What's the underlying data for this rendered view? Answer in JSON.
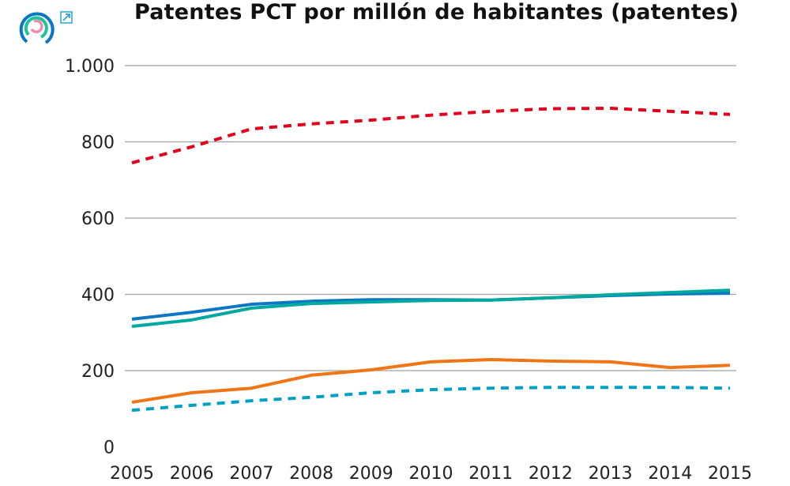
{
  "header": {
    "logo": "logo-rings",
    "external_link_icon": "external-link-icon"
  },
  "chart_data": {
    "type": "line",
    "title": "Patentes PCT por millón de habitantes (patentes)",
    "xlabel": "",
    "ylabel": "",
    "x": [
      2005,
      2006,
      2007,
      2008,
      2009,
      2010,
      2011,
      2012,
      2013,
      2014,
      2015
    ],
    "xtick_labels": [
      "2005",
      "2006",
      "2007",
      "2008",
      "2009",
      "2010",
      "2011",
      "2012",
      "2013",
      "2014",
      "2015"
    ],
    "ylim": [
      0,
      1000
    ],
    "yticks": [
      0,
      200,
      400,
      600,
      800,
      1000
    ],
    "ytick_labels": [
      "0",
      "200",
      "400",
      "600",
      "800",
      "1.000"
    ],
    "grid": "horizontal",
    "legend": "none",
    "series": [
      {
        "color": "#e2001a",
        "style": "dashed",
        "values": [
          745,
          787,
          834,
          847,
          857,
          870,
          880,
          887,
          888,
          880,
          872
        ]
      },
      {
        "color": "#0a77c4",
        "style": "solid",
        "values": [
          335,
          353,
          374,
          382,
          386,
          386,
          385,
          391,
          397,
          401,
          403
        ]
      },
      {
        "color": "#00a99d",
        "style": "solid",
        "values": [
          316,
          333,
          364,
          376,
          380,
          384,
          385,
          391,
          399,
          405,
          411
        ]
      },
      {
        "color": "#f07516",
        "style": "solid",
        "values": [
          117,
          142,
          154,
          188,
          202,
          223,
          229,
          225,
          223,
          208,
          214
        ]
      },
      {
        "color": "#00a0c6",
        "style": "dashed",
        "values": [
          96,
          109,
          121,
          130,
          142,
          150,
          154,
          156,
          156,
          156,
          154
        ]
      }
    ]
  }
}
